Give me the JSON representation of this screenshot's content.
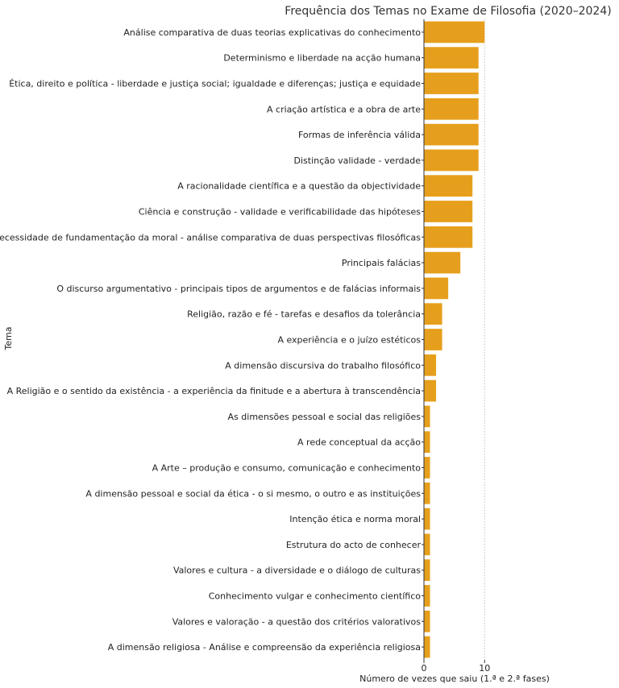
{
  "chart_data": {
    "type": "bar",
    "orientation": "horizontal",
    "title": "Frequência dos Temas no Exame de Filosofia (2020–2024)",
    "xlabel": "Número de vezes que saiu (1.ª e 2.ª fases)",
    "ylabel": "Tema",
    "xlim": [
      0,
      10.5
    ],
    "xticks": [
      0,
      10
    ],
    "grid": "x-dotted",
    "bar_color": "#E69F1C",
    "categories": [
      "Análise comparativa de duas teorias explicativas do conhecimento",
      "Determinismo e liberdade na acção humana",
      "Ética, direito e política - liberdade e justiça social; igualdade e diferenças; justiça e equidade",
      "A criação artística e a obra de arte",
      "Formas de inferência válida",
      "Distinção validade - verdade",
      "A racionalidade científica e a questão da objectividade",
      "Ciência e construção - validade e verificabilidade das hipóteses",
      "A necessidade de fundamentação da moral - análise comparativa de duas perspectivas filosóficas",
      "Principais falácias",
      "O discurso argumentativo - principais tipos de argumentos e de falácias informais",
      "Religião, razão e fé - tarefas e desafios da tolerância",
      "A experiência e o juízo estéticos",
      "A dimensão discursiva do trabalho filosófico",
      "A Religião e o sentido da existência - a experiência da finitude e a abertura à transcendência",
      "As dimensões pessoal e social das religiões",
      "A rede conceptual da acção",
      "A Arte – produção e consumo, comunicação e conhecimento",
      "A dimensão pessoal e social da ética - o si mesmo, o outro e as instituições",
      "Intenção ética e norma moral",
      "Estrutura do acto de conhecer",
      "Valores e cultura - a diversidade e o diálogo de culturas",
      "Conhecimento vulgar e conhecimento científico",
      "Valores e valoração - a questão dos critérios valorativos",
      "A dimensão religiosa - Análise e compreensão da experiência religiosa"
    ],
    "values": [
      10,
      9,
      9,
      9,
      9,
      9,
      8,
      8,
      8,
      6,
      4,
      3,
      3,
      2,
      2,
      1,
      1,
      1,
      1,
      1,
      1,
      1,
      1,
      1,
      1
    ]
  }
}
